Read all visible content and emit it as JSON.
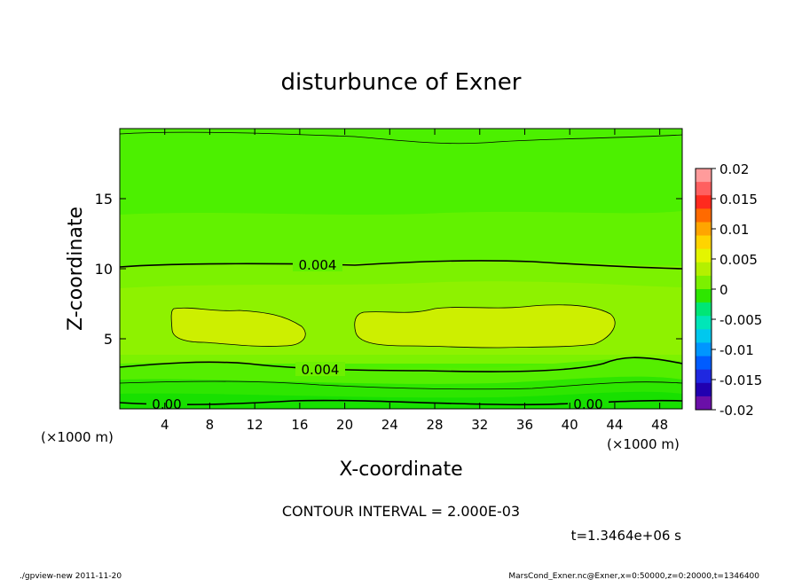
{
  "chart_data": {
    "type": "heatmap",
    "title": "disturbunce of Exner",
    "xlabel": "X-coordinate",
    "ylabel": "Z-coordinate",
    "x_unit": "(×1000 m)",
    "y_unit": "(×1000 m)",
    "xlim": [
      0,
      50
    ],
    "ylim": [
      0,
      20
    ],
    "x_ticks": [
      4,
      8,
      12,
      16,
      20,
      24,
      28,
      32,
      36,
      40,
      44,
      48
    ],
    "y_ticks": [
      5,
      10,
      15
    ],
    "colorbar": {
      "ticks": [
        "0.02",
        "0.015",
        "0.01",
        "0.005",
        "0",
        "-0.005",
        "-0.01",
        "-0.015",
        "-0.02"
      ],
      "range": [
        -0.02,
        0.02
      ],
      "colors": [
        "#ff9b9b",
        "#ff6060",
        "#ff2a1e",
        "#ff6a00",
        "#ffa500",
        "#ffd400",
        "#e4f500",
        "#b4f000",
        "#7cf000",
        "#2ee600",
        "#00e676",
        "#00e6b8",
        "#00c8ee",
        "#0096ff",
        "#005cff",
        "#1f28e0",
        "#2000b0",
        "#6a0fa8"
      ]
    },
    "contour_labels": [
      "0.004",
      "0.004",
      "0.00",
      "0.00"
    ],
    "contour_interval_text": "CONTOUR INTERVAL = 2.000E-03",
    "time_text": "t=1.3464e+06 s"
  },
  "footer": {
    "left": "./gpview-new   2011-11-20",
    "right": "MarsCond_Exner.nc@Exner,x=0:50000,z=0:20000,t=1346400"
  }
}
